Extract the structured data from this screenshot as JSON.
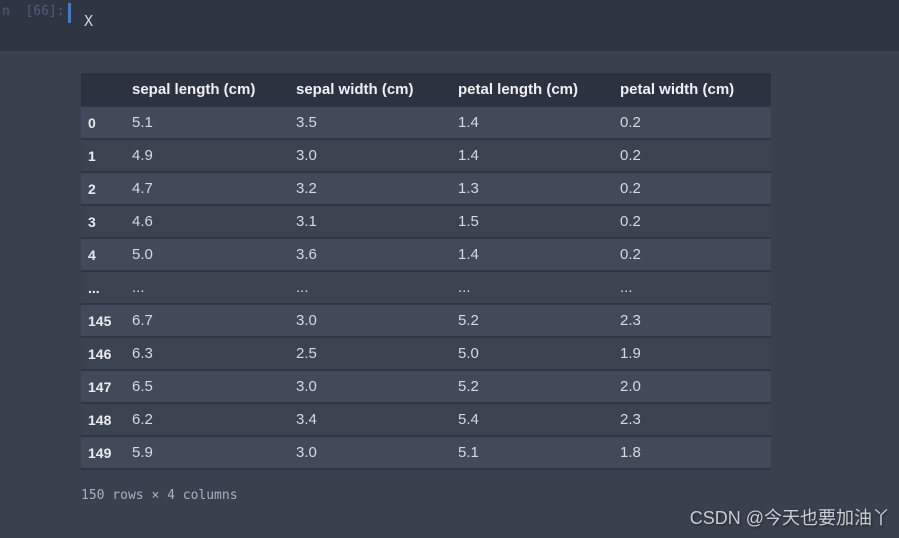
{
  "editor": {
    "prompt": "n  [66]:",
    "code": "X"
  },
  "table": {
    "index_header": "",
    "columns": [
      "sepal length (cm)",
      "sepal width (cm)",
      "petal length (cm)",
      "petal width (cm)"
    ],
    "rows": [
      {
        "index": "0",
        "values": [
          "5.1",
          "3.5",
          "1.4",
          "0.2"
        ]
      },
      {
        "index": "1",
        "values": [
          "4.9",
          "3.0",
          "1.4",
          "0.2"
        ]
      },
      {
        "index": "2",
        "values": [
          "4.7",
          "3.2",
          "1.3",
          "0.2"
        ]
      },
      {
        "index": "3",
        "values": [
          "4.6",
          "3.1",
          "1.5",
          "0.2"
        ]
      },
      {
        "index": "4",
        "values": [
          "5.0",
          "3.6",
          "1.4",
          "0.2"
        ]
      },
      {
        "index": "...",
        "values": [
          "...",
          "...",
          "...",
          "..."
        ]
      },
      {
        "index": "145",
        "values": [
          "6.7",
          "3.0",
          "5.2",
          "2.3"
        ]
      },
      {
        "index": "146",
        "values": [
          "6.3",
          "2.5",
          "5.0",
          "1.9"
        ]
      },
      {
        "index": "147",
        "values": [
          "6.5",
          "3.0",
          "5.2",
          "2.0"
        ]
      },
      {
        "index": "148",
        "values": [
          "6.2",
          "3.4",
          "5.4",
          "2.3"
        ]
      },
      {
        "index": "149",
        "values": [
          "5.9",
          "3.0",
          "5.1",
          "1.8"
        ]
      }
    ],
    "summary": "150 rows × 4 columns"
  },
  "watermark": "CSDN @今天也要加油丫",
  "colors": {
    "cursor_accent": "#3a7bd5",
    "topbar_bg": "#2f3542",
    "output_bg": "#39404e",
    "header_bg": "#2c323f",
    "row_light": "#424a59",
    "row_dark": "#3b4250"
  }
}
